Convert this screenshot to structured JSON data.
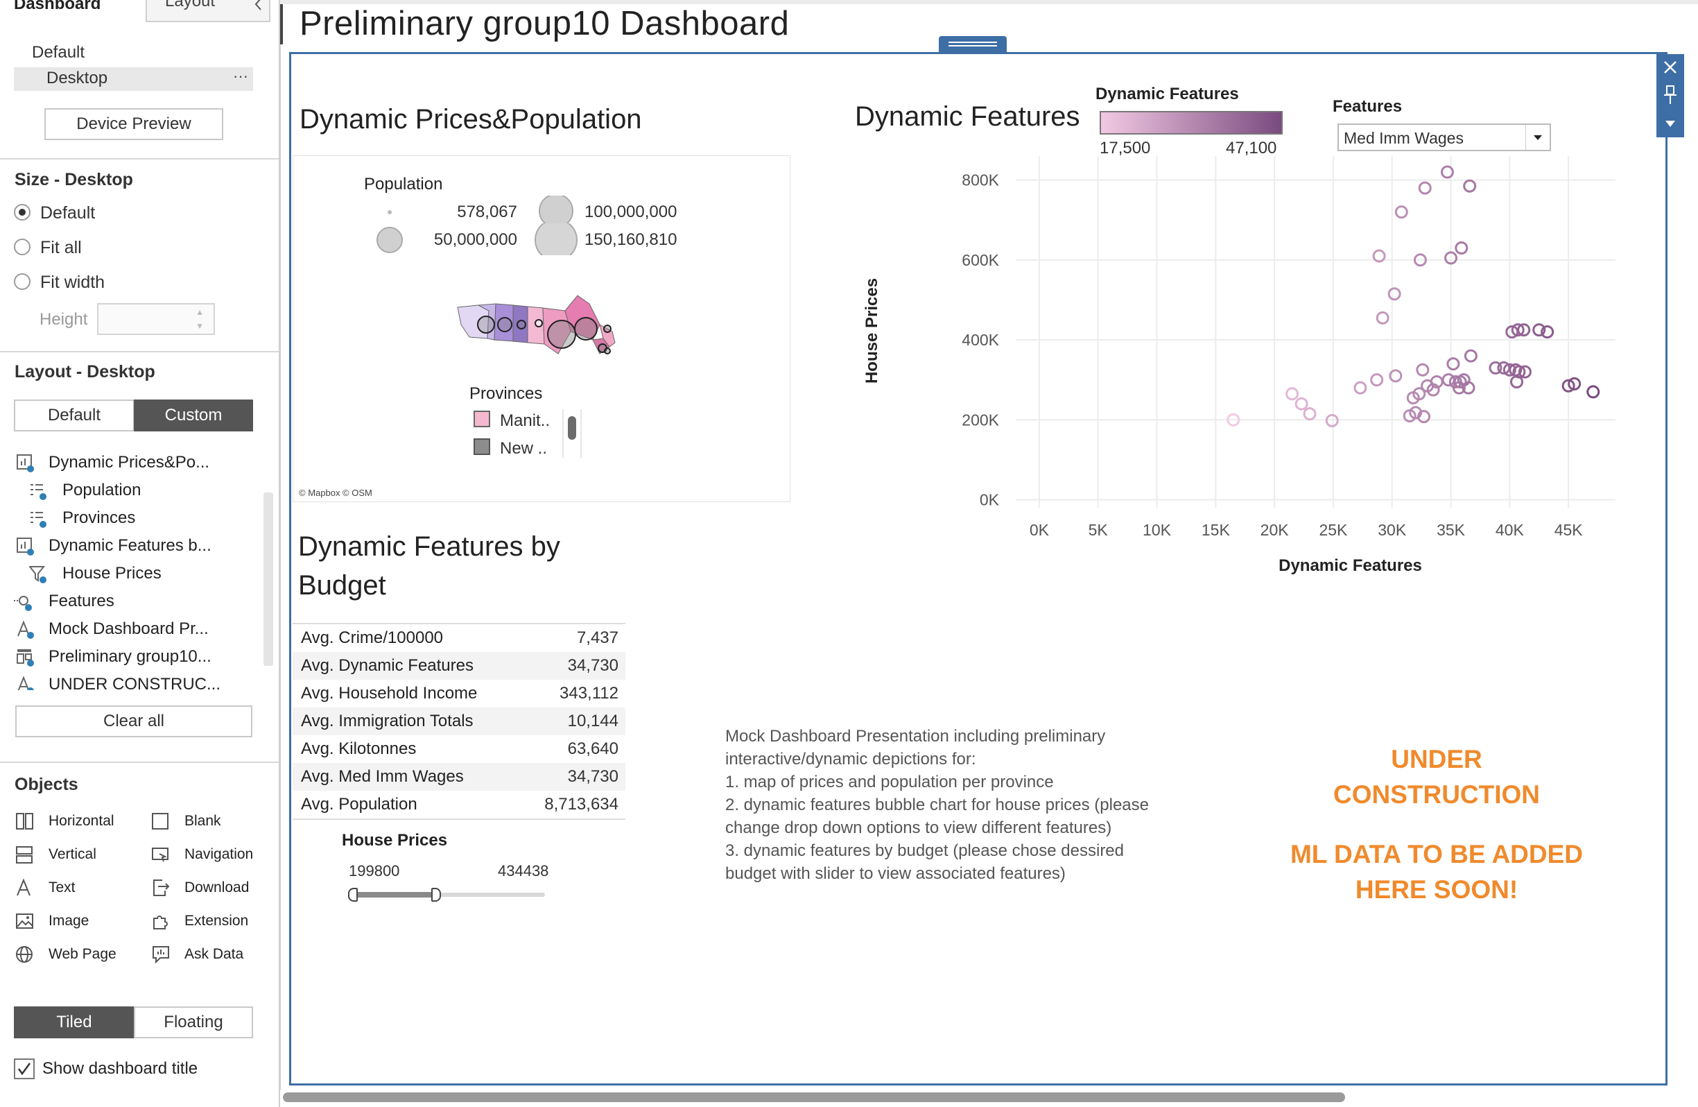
{
  "left_panel": {
    "tabs": [
      "Dashboard",
      "Layout"
    ],
    "collapse_icon": "chevron-left-icon",
    "device_default": "Default",
    "device_desktop": "Desktop",
    "device_preview": "Device Preview",
    "size_title": "Size - Desktop",
    "size_options": [
      "Default",
      "Fit all",
      "Fit width"
    ],
    "height_label": "Height",
    "layout_title": "Layout - Desktop",
    "layout_toggle": [
      "Default",
      "Custom"
    ],
    "items": [
      {
        "label": "Dynamic Prices&Po...",
        "icon": "worksheet-icon",
        "indent": false
      },
      {
        "label": "Population",
        "icon": "legend-icon",
        "indent": true
      },
      {
        "label": "Provinces",
        "icon": "legend-icon",
        "indent": true
      },
      {
        "label": "Dynamic Features b...",
        "icon": "worksheet-icon",
        "indent": false
      },
      {
        "label": "House Prices",
        "icon": "filter-icon",
        "indent": true
      },
      {
        "label": "Features",
        "icon": "parameter-icon",
        "indent": false
      },
      {
        "label": "Mock Dashboard Pr...",
        "icon": "text-icon",
        "indent": false
      },
      {
        "label": "Preliminary group10...",
        "icon": "title-icon",
        "indent": false
      },
      {
        "label": "UNDER CONSTRUC...",
        "icon": "text-icon",
        "indent": false
      }
    ],
    "clear_all": "Clear all",
    "objects_title": "Objects",
    "objects": [
      {
        "label": "Horizontal",
        "icon": "horizontal-icon"
      },
      {
        "label": "Blank",
        "icon": "blank-icon"
      },
      {
        "label": "Vertical",
        "icon": "vertical-icon"
      },
      {
        "label": "Navigation",
        "icon": "navigation-icon"
      },
      {
        "label": "Text",
        "icon": "text-object-icon"
      },
      {
        "label": "Download",
        "icon": "download-icon"
      },
      {
        "label": "Image",
        "icon": "image-icon"
      },
      {
        "label": "Extension",
        "icon": "extension-icon"
      },
      {
        "label": "Web Page",
        "icon": "globe-icon"
      },
      {
        "label": "Ask Data",
        "icon": "ask-data-icon"
      }
    ],
    "tiled": "Tiled",
    "floating": "Floating",
    "show_title": "Show dashboard title"
  },
  "dashboard": {
    "title": "Preliminary group10 Dashboard",
    "map_zone": {
      "title": "Dynamic Prices&Population",
      "population_legend": "Population",
      "sizes": [
        "578,067",
        "50,000,000",
        "100,000,000",
        "150,160,810"
      ],
      "provinces_legend": "Provinces",
      "province_items": [
        "Manit..",
        "New .."
      ],
      "province_colors": [
        "#f5b8cf",
        "#8c8c8c"
      ],
      "attribution": "© Mapbox © OSM"
    },
    "features_zone": {
      "title": "Dynamic Features",
      "color_legend_title": "Dynamic Features",
      "color_min": "17,500",
      "color_max": "47,100",
      "color_low": "#f2c9e3",
      "color_high": "#7a4a7f",
      "param_label": "Features",
      "param_value": "Med Imm Wages"
    },
    "budget_zone": {
      "title_line1": "Dynamic Features by",
      "title_line2": "Budget",
      "rows": [
        {
          "label": "Avg. Crime/100000",
          "value": "7,437"
        },
        {
          "label": "Avg. Dynamic Features",
          "value": "34,730"
        },
        {
          "label": "Avg. Household Income",
          "value": "343,112"
        },
        {
          "label": "Avg. Immigration Totals",
          "value": "10,144"
        },
        {
          "label": "Avg. Kilotonnes",
          "value": "63,640"
        },
        {
          "label": "Avg. Med Imm Wages",
          "value": "34,730"
        },
        {
          "label": "Avg. Population",
          "value": "8,713,634"
        }
      ],
      "filter_title": "House Prices",
      "filter_min": "199800",
      "filter_max": "434438"
    },
    "note": {
      "l1": "Mock Dashboard Presentation including preliminary",
      "l2": "interactive/dynamic  depictions for:",
      "l3": "1. map of prices and population per province",
      "l4": "2. dynamic features bubble chart for house prices (please",
      "l5": "change drop down options to view different features)",
      "l6": "3. dynamic features by budget (please chose dessired",
      "l7": "budget with slider to view associated features)"
    },
    "construction": {
      "l1": "UNDER",
      "l2": "CONSTRUCTION",
      "l3": "ML DATA TO BE ADDED",
      "l4": "HERE SOON!"
    },
    "floating_controls": [
      "close-icon",
      "pin-icon",
      "caret-down-icon"
    ]
  },
  "chart_data": {
    "type": "scatter",
    "xlabel": "Dynamic Features",
    "ylabel": "House Prices",
    "xlim": [
      -2000,
      49000
    ],
    "ylim": [
      -20000,
      860000
    ],
    "x_ticks": [
      "0K",
      "5K",
      "10K",
      "15K",
      "20K",
      "25K",
      "30K",
      "35K",
      "40K",
      "45K"
    ],
    "y_ticks": [
      "0K",
      "200K",
      "400K",
      "600K",
      "800K"
    ],
    "grid": true,
    "points": [
      {
        "x": 16500,
        "y": 200000
      },
      {
        "x": 21500,
        "y": 265000
      },
      {
        "x": 22300,
        "y": 240000
      },
      {
        "x": 23000,
        "y": 215000
      },
      {
        "x": 24900,
        "y": 198000
      },
      {
        "x": 27300,
        "y": 280000
      },
      {
        "x": 28700,
        "y": 300000
      },
      {
        "x": 28900,
        "y": 610000
      },
      {
        "x": 29200,
        "y": 455000
      },
      {
        "x": 30200,
        "y": 515000
      },
      {
        "x": 30300,
        "y": 310000
      },
      {
        "x": 30800,
        "y": 720000
      },
      {
        "x": 31500,
        "y": 210000
      },
      {
        "x": 31800,
        "y": 255000
      },
      {
        "x": 32000,
        "y": 218000
      },
      {
        "x": 32300,
        "y": 265000
      },
      {
        "x": 32400,
        "y": 600000
      },
      {
        "x": 32600,
        "y": 325000
      },
      {
        "x": 32700,
        "y": 208000
      },
      {
        "x": 32800,
        "y": 780000
      },
      {
        "x": 33000,
        "y": 285000
      },
      {
        "x": 33500,
        "y": 275000
      },
      {
        "x": 33800,
        "y": 295000
      },
      {
        "x": 34700,
        "y": 820000
      },
      {
        "x": 34800,
        "y": 300000
      },
      {
        "x": 35000,
        "y": 605000
      },
      {
        "x": 35200,
        "y": 340000
      },
      {
        "x": 35400,
        "y": 295000
      },
      {
        "x": 35700,
        "y": 280000
      },
      {
        "x": 35800,
        "y": 295000
      },
      {
        "x": 35900,
        "y": 630000
      },
      {
        "x": 36100,
        "y": 300000
      },
      {
        "x": 36500,
        "y": 280000
      },
      {
        "x": 36600,
        "y": 785000
      },
      {
        "x": 36700,
        "y": 360000
      },
      {
        "x": 38800,
        "y": 330000
      },
      {
        "x": 39500,
        "y": 330000
      },
      {
        "x": 40000,
        "y": 325000
      },
      {
        "x": 40200,
        "y": 420000
      },
      {
        "x": 40500,
        "y": 325000
      },
      {
        "x": 40600,
        "y": 295000
      },
      {
        "x": 40700,
        "y": 425000
      },
      {
        "x": 40800,
        "y": 320000
      },
      {
        "x": 41200,
        "y": 425000
      },
      {
        "x": 41300,
        "y": 320000
      },
      {
        "x": 42500,
        "y": 425000
      },
      {
        "x": 43200,
        "y": 420000
      },
      {
        "x": 45000,
        "y": 285000
      },
      {
        "x": 45500,
        "y": 290000
      },
      {
        "x": 47100,
        "y": 270000
      }
    ]
  }
}
